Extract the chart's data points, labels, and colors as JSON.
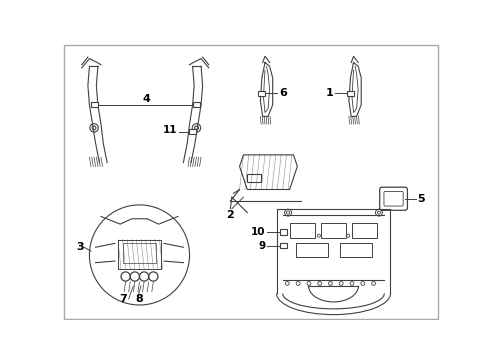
{
  "bg_color": "#ffffff",
  "line_color": "#404040",
  "label_color": "#000000",
  "figsize": [
    4.9,
    3.6
  ],
  "dpi": 100
}
